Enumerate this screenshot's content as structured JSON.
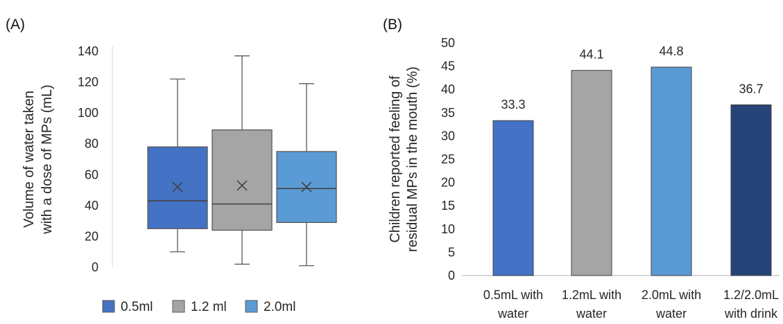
{
  "chart_data": [
    {
      "panel": "(A)",
      "type": "box",
      "ylabel": [
        "Volume of water taken",
        "with a dose of MPs (mL)"
      ],
      "ylim": [
        0,
        140
      ],
      "yticks": [
        0,
        20,
        40,
        60,
        80,
        100,
        120,
        140
      ],
      "legend_position": "bottom",
      "series": [
        {
          "name": "0.5ml",
          "color": "#4472C4",
          "whisker_low": 10,
          "q1": 25,
          "median": 43,
          "q3": 78,
          "whisker_high": 122,
          "mean": 52
        },
        {
          "name": "1.2 ml",
          "color": "#A5A5A5",
          "whisker_low": 2,
          "q1": 24,
          "median": 41,
          "q3": 89,
          "whisker_high": 137,
          "mean": 53
        },
        {
          "name": "2.0ml",
          "color": "#5B9BD5",
          "whisker_low": 1,
          "q1": 29,
          "median": 51,
          "q3": 75,
          "whisker_high": 119,
          "mean": 52
        }
      ]
    },
    {
      "panel": "(B)",
      "type": "bar",
      "ylabel": [
        "Children reported feeling of",
        "residual MPs in the mouth (%)"
      ],
      "ylim": [
        0,
        50
      ],
      "yticks": [
        0,
        5,
        10,
        15,
        20,
        25,
        30,
        35,
        40,
        45,
        50
      ],
      "categories": [
        [
          "0.5mL with",
          "water"
        ],
        [
          "1.2mL with",
          "water"
        ],
        [
          "2.0mL with",
          "water"
        ],
        [
          "1.2/2.0mL",
          "with drink"
        ]
      ],
      "values": [
        33.3,
        44.1,
        44.8,
        36.7
      ],
      "value_labels": [
        "33.3",
        "44.1",
        "44.8",
        "36.7"
      ],
      "colors": [
        "#4472C4",
        "#A5A5A5",
        "#5B9BD5",
        "#264478"
      ]
    }
  ]
}
